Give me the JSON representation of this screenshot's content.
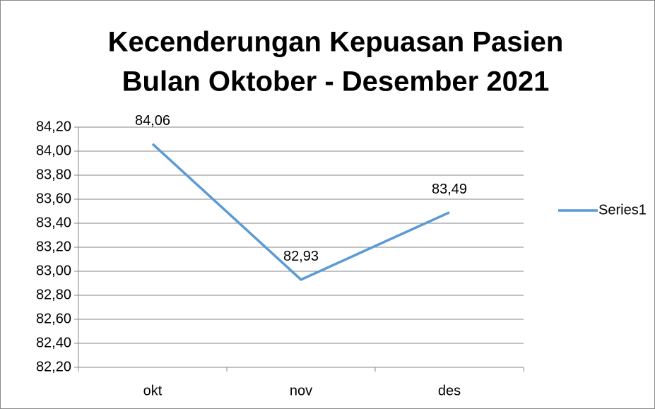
{
  "chart_data": {
    "type": "line",
    "title": [
      "Kecenderungan Kepuasan Pasien",
      "Bulan Oktober - Desember 2021"
    ],
    "categories": [
      "okt",
      "nov",
      "des"
    ],
    "series": [
      {
        "name": "Series1",
        "color": "#5b9bd5",
        "values": [
          84.06,
          82.93,
          83.49
        ],
        "value_labels": [
          "84,06",
          "82,93",
          "83,49"
        ]
      }
    ],
    "ylim": [
      82.2,
      84.2
    ],
    "yticks": [
      {
        "value": 82.2,
        "label": "82,20"
      },
      {
        "value": 82.4,
        "label": "82,40"
      },
      {
        "value": 82.6,
        "label": "82,60"
      },
      {
        "value": 82.8,
        "label": "82,80"
      },
      {
        "value": 83.0,
        "label": "83,00"
      },
      {
        "value": 83.2,
        "label": "83,20"
      },
      {
        "value": 83.4,
        "label": "83,40"
      },
      {
        "value": 83.6,
        "label": "83,60"
      },
      {
        "value": 83.8,
        "label": "83,80"
      },
      {
        "value": 84.0,
        "label": "84,00"
      },
      {
        "value": 84.2,
        "label": "84,20"
      }
    ],
    "grid": true,
    "legend": "right"
  }
}
